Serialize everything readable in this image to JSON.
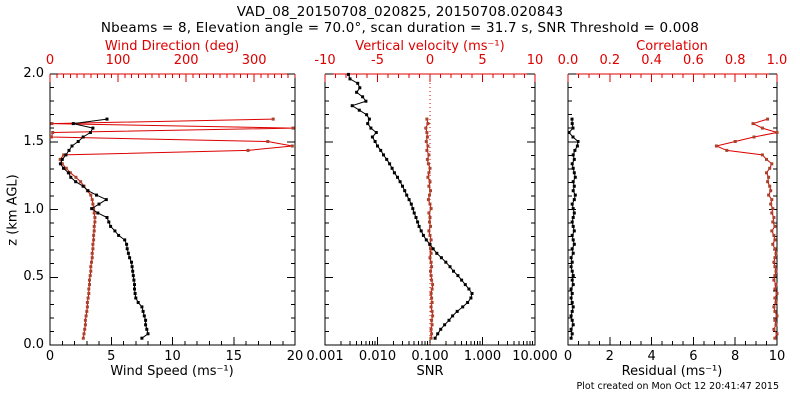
{
  "header": {
    "title": "VAD_08_20150708_020825, 20150708.020843",
    "subtitle": "Nbeams = 8, Elevation angle = 70.0°, scan duration = 31.7 s, SNR Threshold = 0.008"
  },
  "footer": {
    "created": "Plot created on Mon Oct 12 20:41:47 2015"
  },
  "colors": {
    "axis_red": "#dd0000",
    "line_red": "#dd0000",
    "marker_red": "#a8432c",
    "black": "#000000",
    "background": "#ffffff"
  },
  "y_axis": {
    "label": "z (km AGL)",
    "range": [
      0,
      2
    ],
    "minor_step": 0.1,
    "ticks": [
      {
        "v": 0.0,
        "l": "0.0"
      },
      {
        "v": 0.5,
        "l": "0.5"
      },
      {
        "v": 1.0,
        "l": "1.0"
      },
      {
        "v": 1.5,
        "l": "1.5"
      },
      {
        "v": 2.0,
        "l": "2.0"
      }
    ]
  },
  "chart_data": [
    {
      "type": "line",
      "panel": "wind",
      "x_top": {
        "label": "Wind Direction (deg)",
        "range": [
          0,
          360
        ],
        "minor_step": 10,
        "color": "red",
        "ticks": [
          {
            "v": 0,
            "l": "0"
          },
          {
            "v": 100,
            "l": "100"
          },
          {
            "v": 200,
            "l": "200"
          },
          {
            "v": 300,
            "l": "300"
          }
        ]
      },
      "x_bottom": {
        "label": "Wind Speed (ms⁻¹)",
        "range": [
          0,
          20
        ],
        "minor_step": 1,
        "ticks": [
          {
            "v": 0,
            "l": "0"
          },
          {
            "v": 5,
            "l": "5"
          },
          {
            "v": 10,
            "l": "10"
          },
          {
            "v": 15,
            "l": "15"
          },
          {
            "v": 20,
            "l": "20"
          }
        ]
      },
      "series": [
        {
          "name": "wind-direction",
          "axis": "top",
          "color": "red",
          "z": [
            0.05,
            0.083,
            0.116,
            0.149,
            0.182,
            0.215,
            0.248,
            0.281,
            0.314,
            0.347,
            0.38,
            0.413,
            0.446,
            0.479,
            0.512,
            0.545,
            0.578,
            0.611,
            0.644,
            0.677,
            0.71,
            0.743,
            0.776,
            0.809,
            0.842,
            0.875,
            0.908,
            0.941,
            0.974,
            1.007,
            1.04,
            1.073,
            1.106,
            1.139,
            1.172,
            1.205,
            1.238,
            1.271,
            1.304,
            1.337,
            1.37,
            1.403,
            1.436,
            1.469,
            1.502,
            1.535,
            1.568,
            1.601,
            1.634,
            1.667
          ],
          "values": [
            49,
            50,
            51,
            52,
            52,
            53,
            54,
            55,
            55,
            56,
            57,
            57,
            58,
            58,
            59,
            60,
            60,
            61,
            62,
            62,
            63,
            63,
            64,
            64,
            65,
            65,
            66,
            66,
            65,
            64,
            63,
            62,
            60,
            55,
            50,
            45,
            38,
            30,
            24,
            18,
            15,
            20,
            291,
            356,
            320,
            2,
            4,
            357,
            3,
            328
          ]
        },
        {
          "name": "wind-speed",
          "axis": "bottom",
          "color": "black",
          "z": [
            0.05,
            0.083,
            0.116,
            0.149,
            0.182,
            0.215,
            0.248,
            0.281,
            0.314,
            0.347,
            0.38,
            0.413,
            0.446,
            0.479,
            0.512,
            0.545,
            0.578,
            0.611,
            0.644,
            0.677,
            0.71,
            0.743,
            0.776,
            0.809,
            0.842,
            0.875,
            0.908,
            0.941,
            0.974,
            1.007,
            1.04,
            1.073,
            1.106,
            1.139,
            1.172,
            1.205,
            1.238,
            1.271,
            1.304,
            1.337,
            1.37,
            1.403,
            1.436,
            1.469,
            1.502,
            1.535,
            1.568,
            1.601,
            1.634,
            1.667
          ],
          "values": [
            7.5,
            8.0,
            7.9,
            7.8,
            7.8,
            7.7,
            7.6,
            7.5,
            7.2,
            7.0,
            6.95,
            6.9,
            6.9,
            6.85,
            6.8,
            6.75,
            6.7,
            6.65,
            6.5,
            6.4,
            6.3,
            6.25,
            6.1,
            5.6,
            5.3,
            4.95,
            4.8,
            4.65,
            3.9,
            3.4,
            4.0,
            4.6,
            3.8,
            3.1,
            2.7,
            2.1,
            1.7,
            1.5,
            1.1,
            0.85,
            1.0,
            1.3,
            1.55,
            1.8,
            2.3,
            2.7,
            3.3,
            3.5,
            1.9,
            4.65
          ]
        }
      ]
    },
    {
      "type": "line",
      "panel": "snr-vertical-velocity",
      "x_top": {
        "label": "Vertical velocity (ms⁻¹)",
        "range": [
          -10,
          10
        ],
        "minor_step": 1,
        "color": "red",
        "ticks": [
          {
            "v": -10,
            "l": "-10"
          },
          {
            "v": -5,
            "l": "-5"
          },
          {
            "v": 0,
            "l": "0"
          },
          {
            "v": 5,
            "l": "5"
          },
          {
            "v": 10,
            "l": "10"
          }
        ]
      },
      "x_bottom": {
        "label": "SNR",
        "range": [
          0.001,
          10
        ],
        "log": true,
        "ticks": [
          {
            "v": 0.001,
            "l": "0.001"
          },
          {
            "v": 0.01,
            "l": "0.010"
          },
          {
            "v": 0.1,
            "l": "0.100"
          },
          {
            "v": 1,
            "l": "1.000"
          },
          {
            "v": 10,
            "l": "10.000"
          }
        ]
      },
      "zero_line": {
        "axis": "top",
        "value": 0,
        "style": "dotted",
        "color": "red"
      },
      "series": [
        {
          "name": "vertical-velocity",
          "axis": "top",
          "color": "red",
          "z": [
            0.05,
            0.083,
            0.116,
            0.149,
            0.182,
            0.215,
            0.248,
            0.281,
            0.314,
            0.347,
            0.38,
            0.413,
            0.446,
            0.479,
            0.512,
            0.545,
            0.578,
            0.611,
            0.644,
            0.677,
            0.71,
            0.743,
            0.776,
            0.809,
            0.842,
            0.875,
            0.908,
            0.941,
            0.974,
            1.007,
            1.04,
            1.073,
            1.106,
            1.139,
            1.172,
            1.205,
            1.238,
            1.271,
            1.304,
            1.337,
            1.37,
            1.403,
            1.436,
            1.469,
            1.502,
            1.535,
            1.568,
            1.601,
            1.634,
            1.667
          ],
          "values": [
            0.1,
            0.15,
            0.1,
            0.2,
            0.15,
            0.25,
            0.2,
            0.1,
            0.2,
            0.15,
            0.1,
            0.2,
            0.25,
            0.15,
            0.1,
            0.05,
            0.15,
            0.1,
            0.0,
            0.1,
            0.05,
            -0.05,
            0.1,
            0.0,
            -0.1,
            0.05,
            -0.05,
            0.0,
            -0.1,
            0.1,
            0.0,
            -0.15,
            -0.05,
            0.05,
            -0.1,
            0.0,
            -0.2,
            -0.1,
            0.0,
            -0.15,
            -0.25,
            -0.1,
            -0.3,
            -0.2,
            -0.35,
            -0.25,
            -0.3,
            -0.4,
            -0.2,
            -0.3
          ]
        },
        {
          "name": "snr",
          "axis": "bottom",
          "color": "black",
          "z": [
            0.05,
            0.083,
            0.116,
            0.149,
            0.182,
            0.215,
            0.248,
            0.281,
            0.314,
            0.347,
            0.38,
            0.413,
            0.446,
            0.479,
            0.512,
            0.545,
            0.578,
            0.611,
            0.644,
            0.677,
            0.71,
            0.743,
            0.776,
            0.809,
            0.842,
            0.875,
            0.908,
            0.941,
            0.974,
            1.007,
            1.04,
            1.073,
            1.106,
            1.139,
            1.172,
            1.205,
            1.238,
            1.271,
            1.304,
            1.337,
            1.37,
            1.403,
            1.436,
            1.469,
            1.502,
            1.535,
            1.568,
            1.601,
            1.634,
            1.667,
            1.7,
            1.733,
            1.766,
            1.799,
            1.832,
            1.865,
            1.898,
            1.931,
            1.964,
            1.997
          ],
          "values": [
            0.125,
            0.14,
            0.16,
            0.19,
            0.23,
            0.27,
            0.33,
            0.42,
            0.52,
            0.6,
            0.63,
            0.55,
            0.47,
            0.4,
            0.34,
            0.28,
            0.24,
            0.2,
            0.165,
            0.135,
            0.115,
            0.1,
            0.085,
            0.075,
            0.068,
            0.062,
            0.058,
            0.054,
            0.05,
            0.047,
            0.044,
            0.04,
            0.036,
            0.033,
            0.03,
            0.027,
            0.024,
            0.021,
            0.019,
            0.017,
            0.015,
            0.013,
            0.0115,
            0.01,
            0.009,
            0.008,
            0.0095,
            0.0075,
            0.0065,
            0.007,
            0.0062,
            0.0045,
            0.0033,
            0.006,
            0.0052,
            0.004,
            0.0046,
            0.0042,
            0.003,
            0.0028
          ]
        }
      ]
    },
    {
      "type": "line",
      "panel": "residual-correlation",
      "x_top": {
        "label": "Correlation",
        "range": [
          0,
          1
        ],
        "minor_step": 0.05,
        "color": "red",
        "ticks": [
          {
            "v": 0,
            "l": "0.0"
          },
          {
            "v": 0.2,
            "l": "0.2"
          },
          {
            "v": 0.4,
            "l": "0.4"
          },
          {
            "v": 0.6,
            "l": "0.6"
          },
          {
            "v": 0.8,
            "l": "0.8"
          },
          {
            "v": 1,
            "l": "1.0"
          }
        ]
      },
      "x_bottom": {
        "label": "Residual (ms⁻¹)",
        "range": [
          0,
          10
        ],
        "minor_step": 0.5,
        "ticks": [
          {
            "v": 0,
            "l": "0"
          },
          {
            "v": 2,
            "l": "2"
          },
          {
            "v": 4,
            "l": "4"
          },
          {
            "v": 6,
            "l": "6"
          },
          {
            "v": 8,
            "l": "8"
          },
          {
            "v": 10,
            "l": "10"
          }
        ]
      },
      "series": [
        {
          "name": "correlation",
          "axis": "top",
          "color": "red",
          "z": [
            0.05,
            0.083,
            0.116,
            0.149,
            0.182,
            0.215,
            0.248,
            0.281,
            0.314,
            0.347,
            0.38,
            0.413,
            0.446,
            0.479,
            0.512,
            0.545,
            0.578,
            0.611,
            0.644,
            0.677,
            0.71,
            0.743,
            0.776,
            0.809,
            0.842,
            0.875,
            0.908,
            0.941,
            0.974,
            1.007,
            1.04,
            1.073,
            1.106,
            1.139,
            1.172,
            1.205,
            1.238,
            1.271,
            1.304,
            1.337,
            1.37,
            1.403,
            1.436,
            1.469,
            1.502,
            1.535,
            1.568,
            1.601,
            1.634,
            1.667
          ],
          "values": [
            0.99,
            1.0,
            0.985,
            0.995,
            0.99,
            1.0,
            0.99,
            0.985,
            0.995,
            0.99,
            1.0,
            0.99,
            0.995,
            0.985,
            0.99,
            0.995,
            0.99,
            0.985,
            0.99,
            0.995,
            0.99,
            0.98,
            0.99,
            0.985,
            0.975,
            0.99,
            0.98,
            0.985,
            0.975,
            0.98,
            0.97,
            0.975,
            0.96,
            0.97,
            0.965,
            0.955,
            0.96,
            0.95,
            0.965,
            0.975,
            0.95,
            0.93,
            0.76,
            0.71,
            0.8,
            0.89,
            1.0,
            0.93,
            0.885,
            0.955
          ]
        },
        {
          "name": "residual",
          "axis": "bottom",
          "color": "black",
          "z": [
            0.05,
            0.083,
            0.116,
            0.149,
            0.182,
            0.215,
            0.248,
            0.281,
            0.314,
            0.347,
            0.38,
            0.413,
            0.446,
            0.479,
            0.512,
            0.545,
            0.578,
            0.611,
            0.644,
            0.677,
            0.71,
            0.743,
            0.776,
            0.809,
            0.842,
            0.875,
            0.908,
            0.941,
            0.974,
            1.007,
            1.04,
            1.073,
            1.106,
            1.139,
            1.172,
            1.205,
            1.238,
            1.271,
            1.304,
            1.337,
            1.37,
            1.403,
            1.436,
            1.469,
            1.502,
            1.535,
            1.568,
            1.601,
            1.634,
            1.667
          ],
          "values": [
            0.15,
            0.2,
            0.15,
            0.25,
            0.2,
            0.15,
            0.2,
            0.25,
            0.2,
            0.15,
            0.2,
            0.15,
            0.25,
            0.2,
            0.25,
            0.2,
            0.15,
            0.2,
            0.15,
            0.25,
            0.2,
            0.3,
            0.25,
            0.2,
            0.3,
            0.25,
            0.2,
            0.25,
            0.3,
            0.25,
            0.2,
            0.3,
            0.35,
            0.25,
            0.3,
            0.25,
            0.35,
            0.3,
            0.25,
            0.2,
            0.3,
            0.25,
            0.33,
            0.45,
            0.48,
            0.24,
            0.05,
            0.24,
            0.2,
            0.19
          ]
        }
      ]
    }
  ]
}
